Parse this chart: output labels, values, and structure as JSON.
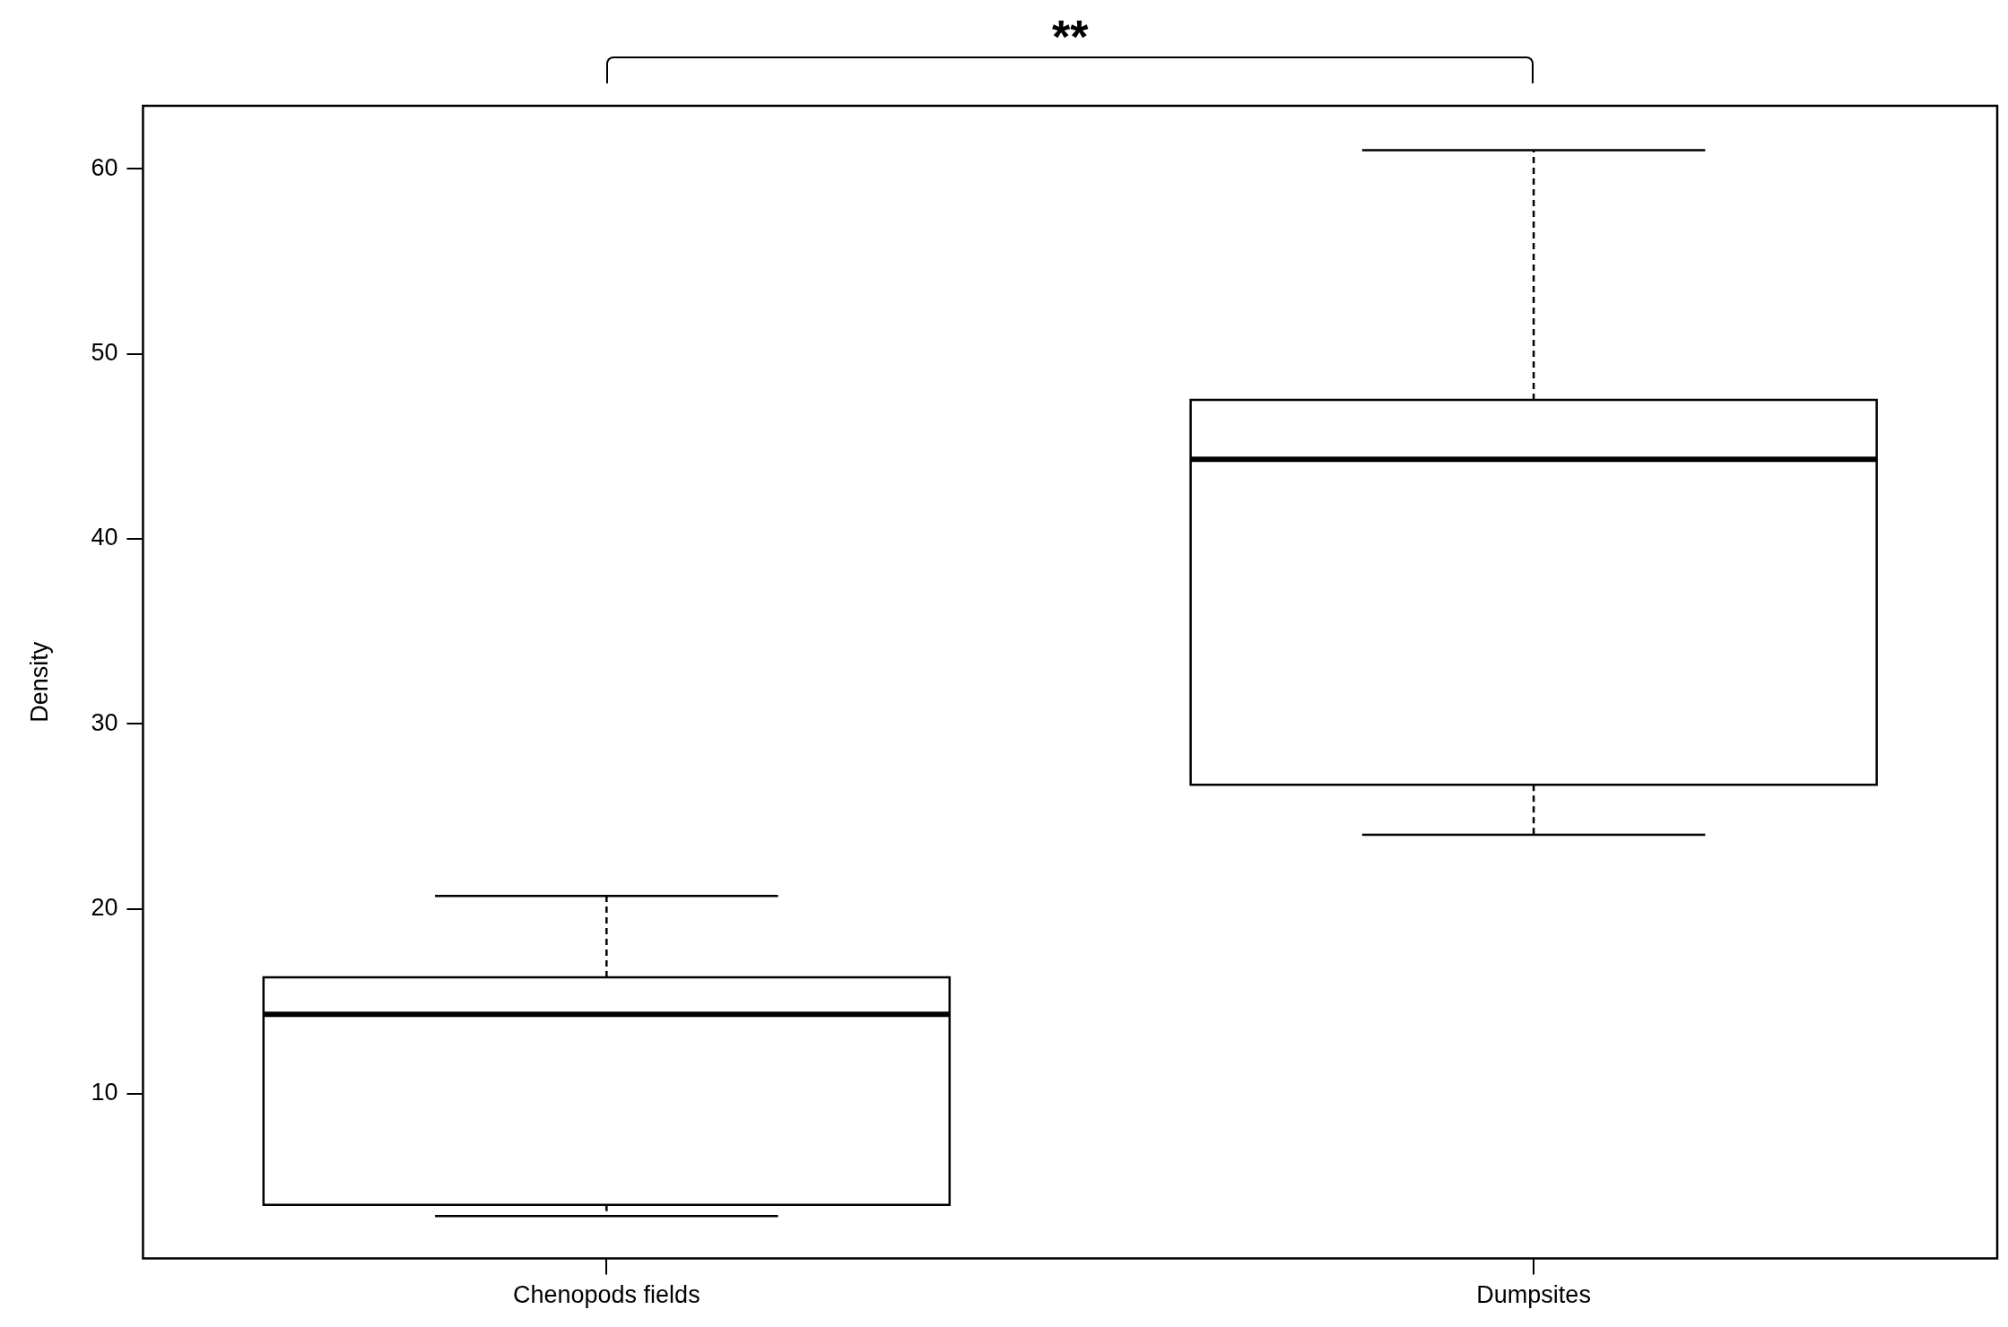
{
  "chart_data": {
    "type": "box",
    "ylabel": "Density",
    "categories": [
      "Chenopods fields",
      "Dumpsites"
    ],
    "boxes": [
      {
        "low": 3.4,
        "q1": 4.0,
        "median": 14.3,
        "q3": 16.3,
        "high": 20.7
      },
      {
        "low": 24.0,
        "q1": 26.7,
        "median": 44.3,
        "q3": 47.5,
        "high": 61.0
      }
    ],
    "ylim": [
      1.1,
      63.4
    ],
    "yticks": [
      10,
      20,
      30,
      40,
      50,
      60
    ],
    "grid": false,
    "legend": false,
    "annotations": [
      "**"
    ]
  }
}
